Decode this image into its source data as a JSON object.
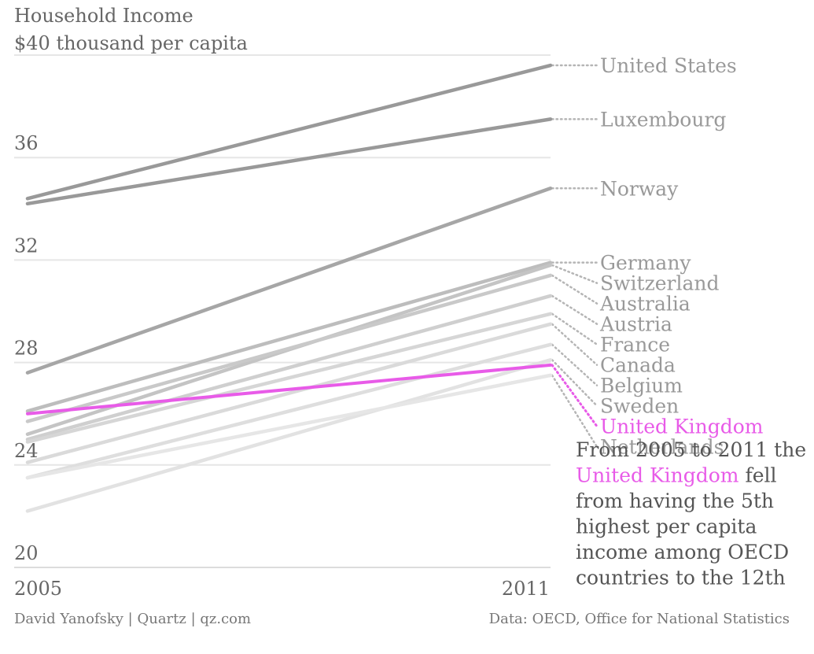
{
  "chart_data": {
    "type": "line",
    "title": [
      "Household Income",
      "$40 thousand per capita"
    ],
    "x": [
      "2005",
      "2011"
    ],
    "ylim": [
      20,
      40
    ],
    "yticks": [
      20,
      24,
      28,
      32,
      36
    ],
    "grid": true,
    "series": [
      {
        "name": "United States",
        "values": [
          34.4,
          39.6
        ],
        "color": "#999999"
      },
      {
        "name": "Luxembourg",
        "values": [
          34.2,
          37.5
        ],
        "color": "#999999"
      },
      {
        "name": "Norway",
        "values": [
          27.6,
          34.8
        ],
        "color": "#a6a6a6"
      },
      {
        "name": "Germany",
        "values": [
          26.1,
          31.9
        ],
        "color": "#bdbdbd"
      },
      {
        "name": "Switzerland",
        "values": [
          25.2,
          31.8
        ],
        "color": "#c4c4c4"
      },
      {
        "name": "Australia",
        "values": [
          25.7,
          31.4
        ],
        "color": "#c9c9c9"
      },
      {
        "name": "Austria",
        "values": [
          25.0,
          30.6
        ],
        "color": "#cfcfcf"
      },
      {
        "name": "France",
        "values": [
          24.9,
          29.9
        ],
        "color": "#d6d6d6"
      },
      {
        "name": "Canada",
        "values": [
          24.1,
          29.5
        ],
        "color": "#dadada"
      },
      {
        "name": "Belgium",
        "values": [
          23.5,
          28.7
        ],
        "color": "#dedede"
      },
      {
        "name": "Sweden",
        "values": [
          22.2,
          28.1
        ],
        "color": "#e2e2e2"
      },
      {
        "name": "United Kingdom",
        "values": [
          26.0,
          27.9
        ],
        "color": "#e85be8",
        "highlight": true
      },
      {
        "name": "Netherlands",
        "values": [
          23.5,
          27.5
        ],
        "color": "#e6e6e6"
      }
    ],
    "annotation": {
      "lines": [
        [
          {
            "text": "From 2005 to 2011 the",
            "highlight": false
          }
        ],
        [
          {
            "text": "United Kingdom",
            "highlight": true
          },
          {
            "text": " fell",
            "highlight": false
          }
        ],
        [
          {
            "text": "from having the 5th",
            "highlight": false
          }
        ],
        [
          {
            "text": "highest per capita",
            "highlight": false
          }
        ],
        [
          {
            "text": "income among OECD",
            "highlight": false
          }
        ],
        [
          {
            "text": "countries to the 12th",
            "highlight": false
          }
        ]
      ]
    },
    "footer_left": "David Yanofsky | Quartz | qz.com",
    "footer_right": "Data: OECD, Office for National Statistics",
    "colors": {
      "highlight": "#e85be8",
      "grid": "#e6e6e6",
      "text": "#666666",
      "label": "#999999"
    }
  }
}
